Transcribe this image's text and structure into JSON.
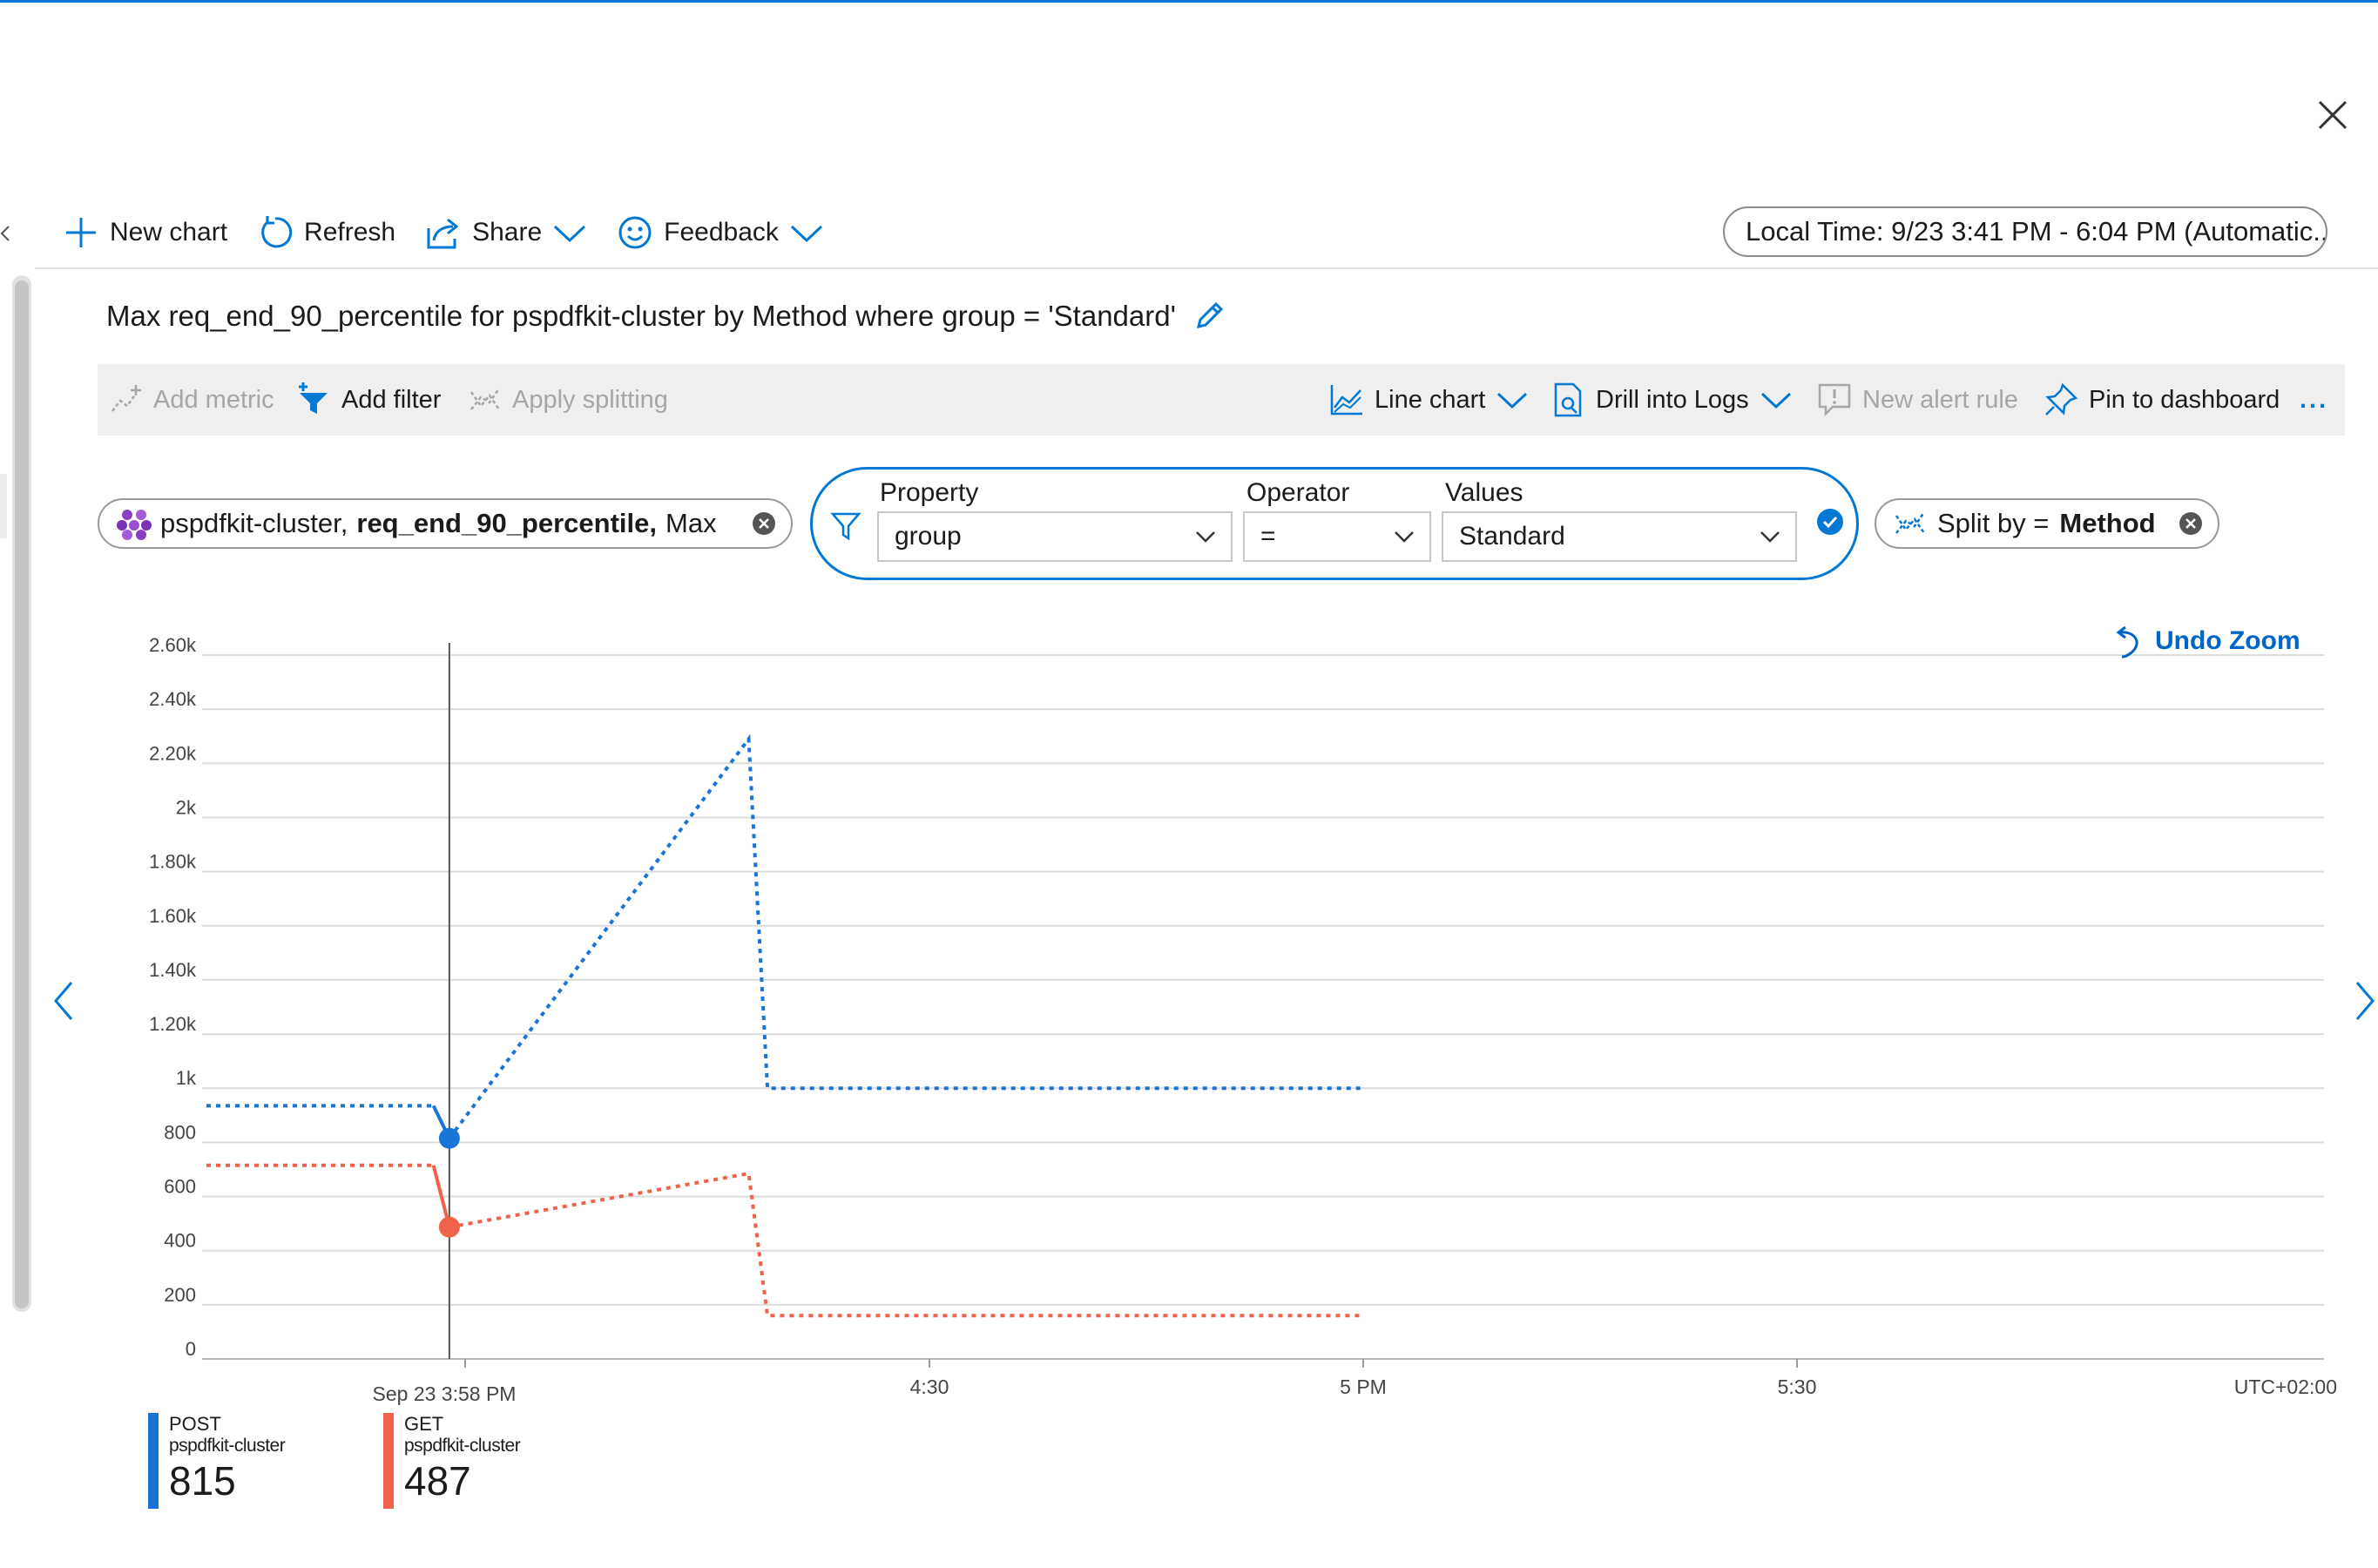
{
  "toolbar": {
    "new_chart": "New chart",
    "refresh": "Refresh",
    "share": "Share",
    "feedback": "Feedback",
    "time_range": "Local Time: 9/23 3:41 PM - 6:04 PM (Automatic..."
  },
  "chart_title": "Max req_end_90_percentile for pspdfkit-cluster by Method where group = 'Standard'",
  "actions": {
    "add_metric": "Add metric",
    "add_filter": "Add filter",
    "apply_splitting": "Apply splitting",
    "line_chart": "Line chart",
    "drill_into_logs": "Drill into Logs",
    "new_alert_rule": "New alert rule",
    "pin_to_dashboard": "Pin to dashboard",
    "more": "..."
  },
  "metric_pill": {
    "resource": "pspdfkit-cluster,",
    "metric": "req_end_90_percentile,",
    "aggregation": "Max"
  },
  "filter": {
    "property_label": "Property",
    "property_value": "group",
    "operator_label": "Operator",
    "operator_value": "=",
    "values_label": "Values",
    "values_value": "Standard"
  },
  "split": {
    "prefix": "Split by =",
    "value": "Method"
  },
  "undo_zoom": "Undo Zoom",
  "timezone": "UTC+02:00",
  "colors": {
    "accent": "#0078d4",
    "post": "#1a73d6",
    "get": "#f0624a"
  },
  "chart_data": {
    "type": "line",
    "y_ticks": [
      "2.60k",
      "2.40k",
      "2.20k",
      "2k",
      "1.80k",
      "1.60k",
      "1.40k",
      "1.20k",
      "1k",
      "800",
      "600",
      "400",
      "200",
      "0"
    ],
    "ylim": [
      0,
      2600
    ],
    "x_ticks": [
      "4:30",
      "5 PM",
      "5:30"
    ],
    "cursor_label": "Sep 23 3:58 PM",
    "grid": true,
    "series": [
      {
        "name": "POST",
        "resource": "pspdfkit-cluster",
        "current_value": "815",
        "color": "#1a73d6",
        "points": [
          [
            0,
            935
          ],
          [
            15.7,
            935
          ],
          [
            16.8,
            815
          ],
          [
            37.5,
            2290
          ],
          [
            38.8,
            1000
          ],
          [
            80,
            1000
          ]
        ]
      },
      {
        "name": "GET",
        "resource": "pspdfkit-cluster",
        "current_value": "487",
        "color": "#f0624a",
        "points": [
          [
            0,
            715
          ],
          [
            15.7,
            715
          ],
          [
            16.8,
            487
          ],
          [
            37.5,
            685
          ],
          [
            38.8,
            160
          ],
          [
            80,
            160
          ]
        ]
      }
    ]
  }
}
